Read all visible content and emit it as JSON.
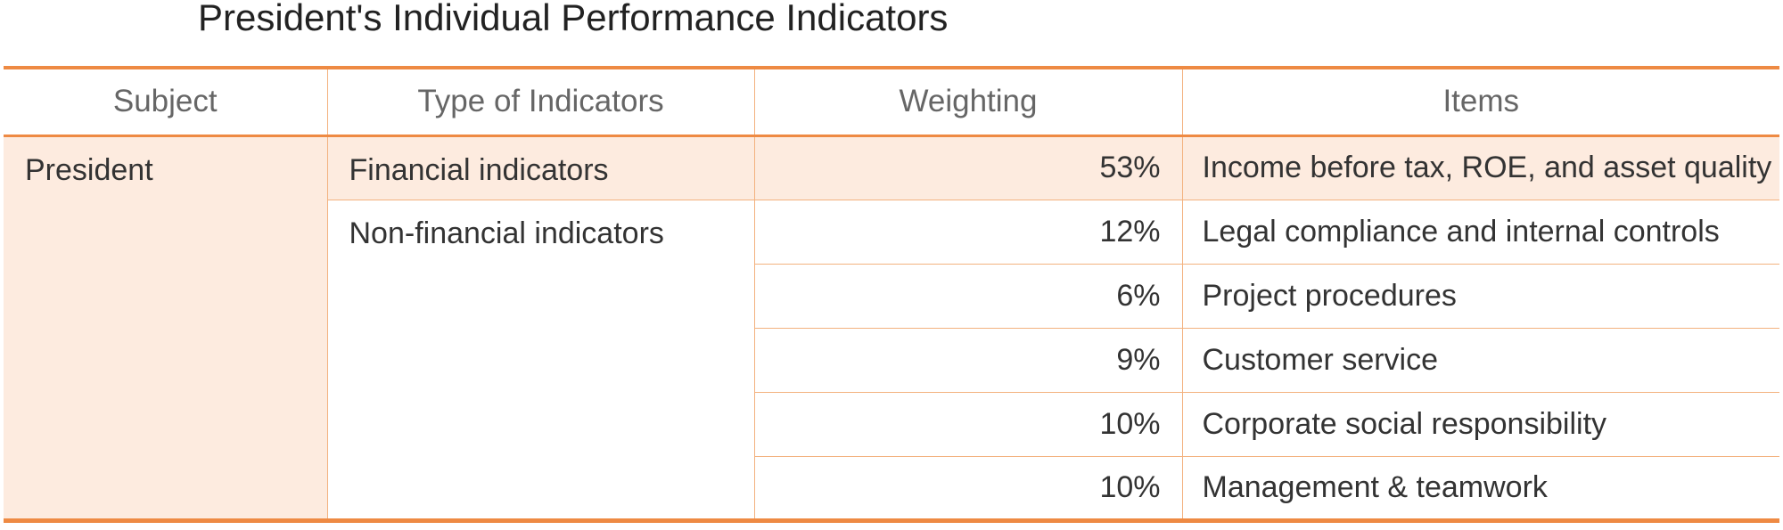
{
  "title": "President's Individual Performance Indicators",
  "table": {
    "headers": [
      "Subject",
      "Type of Indicators",
      "Weighting",
      "Items"
    ],
    "subject": "President",
    "groups": [
      {
        "type": "Financial indicators",
        "rows": [
          {
            "weight": "53%",
            "item": "Income before tax, ROE, and asset quality"
          }
        ]
      },
      {
        "type": "Non-financial indicators",
        "rows": [
          {
            "weight": "12%",
            "item": "Legal compliance and internal controls"
          },
          {
            "weight": "6%",
            "item": "Project procedures"
          },
          {
            "weight": "9%",
            "item": "Customer service"
          },
          {
            "weight": "10%",
            "item": "Corporate social responsibility"
          },
          {
            "weight": "10%",
            "item": "Management & teamwork"
          }
        ]
      }
    ]
  },
  "colors": {
    "accent": "#ee8a43",
    "highlight_fill": "#fdebdf",
    "rule": "#f3b27f"
  }
}
